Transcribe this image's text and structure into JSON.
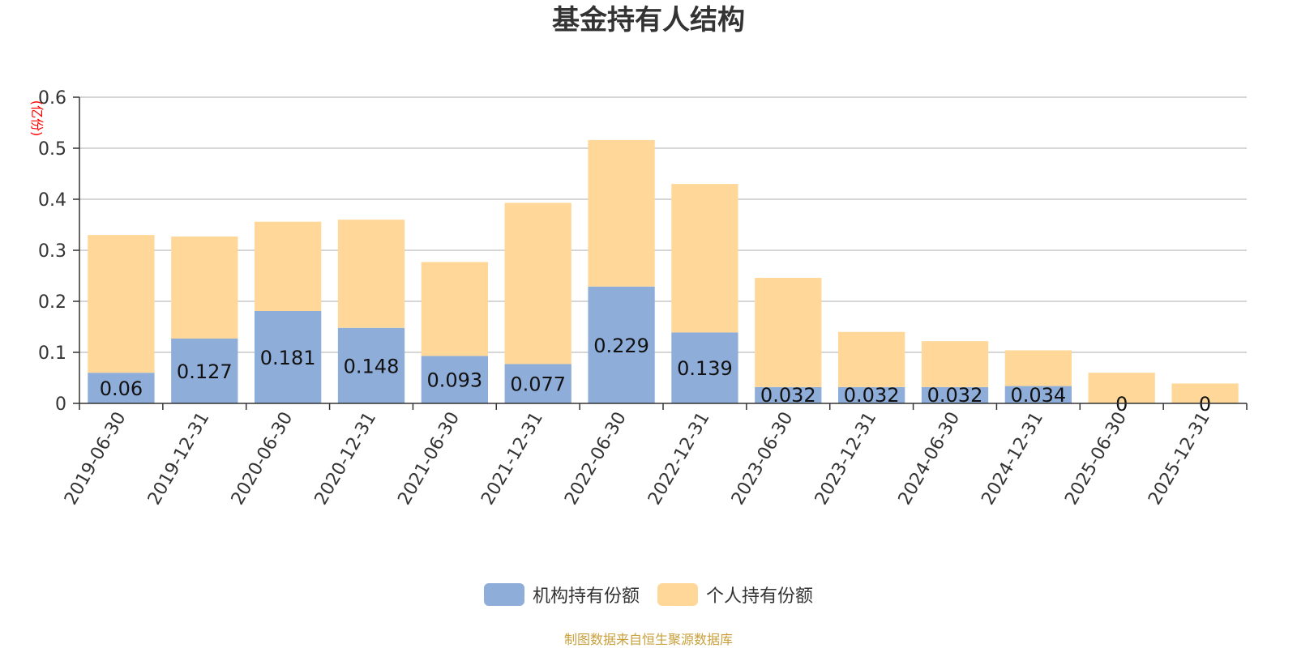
{
  "chart_data": {
    "type": "bar",
    "stacked": true,
    "title": "基金持有人结构",
    "ylabel": "(亿份)",
    "xlabel": "",
    "ylim": [
      0,
      0.6
    ],
    "yticks": [
      "0",
      "0.1",
      "0.2",
      "0.3",
      "0.4",
      "0.5",
      "0.6"
    ],
    "grid": true,
    "legend_position": "bottom-center",
    "categories": [
      "2019-06-30",
      "2019-12-31",
      "2020-06-30",
      "2020-12-31",
      "2021-06-30",
      "2021-12-31",
      "2022-06-30",
      "2022-12-31",
      "2023-06-30",
      "2023-12-31",
      "2024-06-30",
      "2024-12-31",
      "2025-06-30",
      "2025-12-31"
    ],
    "series": [
      {
        "name": "机构持有份额",
        "color": "#8fadd9",
        "values": [
          0.06,
          0.127,
          0.181,
          0.148,
          0.093,
          0.077,
          0.229,
          0.139,
          0.032,
          0.032,
          0.032,
          0.034,
          0,
          0
        ],
        "labels": [
          "0.06",
          "0.127",
          "0.181",
          "0.148",
          "0.093",
          "0.077",
          "0.229",
          "0.139",
          "0.032",
          "0.032",
          "0.032",
          "0.034",
          "0",
          "0"
        ]
      },
      {
        "name": "个人持有份额",
        "color": "#ffd899",
        "values": [
          0.27,
          0.2,
          0.175,
          0.212,
          0.184,
          0.316,
          0.287,
          0.291,
          0.214,
          0.108,
          0.09,
          0.07,
          0.06,
          0.039
        ]
      }
    ]
  },
  "footer": {
    "source": "制图数据来自恒生聚源数据库"
  }
}
